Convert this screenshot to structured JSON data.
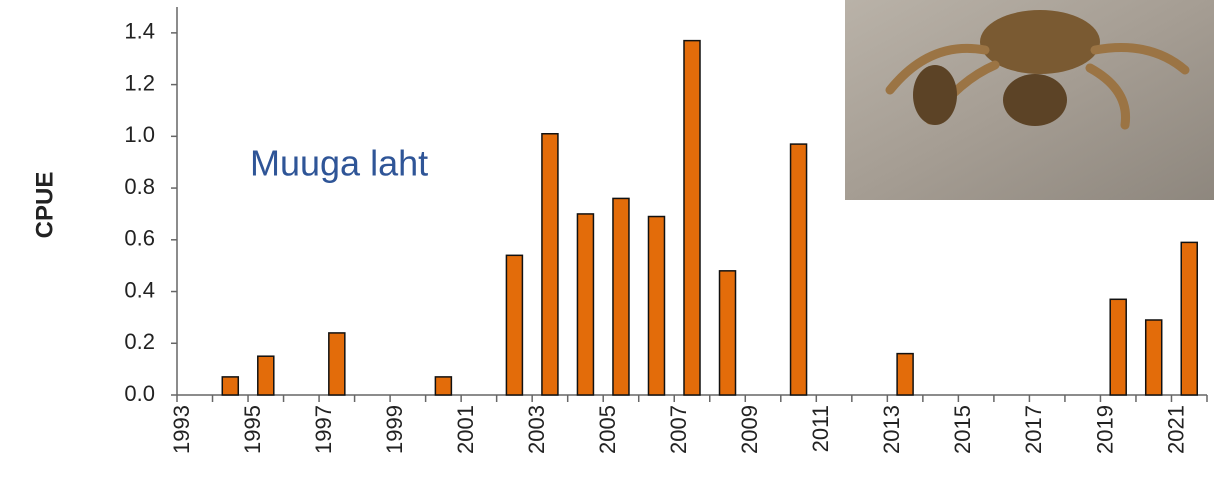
{
  "chart_data": {
    "type": "bar",
    "y_label": "CPUE",
    "annotation": "Muuga laht",
    "categories": [
      "1993",
      null,
      "1995",
      null,
      "1997",
      null,
      "1999",
      null,
      "2001",
      null,
      "2003",
      null,
      "2005",
      null,
      "2007",
      null,
      "2009",
      null,
      "2011",
      null,
      "2013",
      null,
      "2015",
      null,
      "2017",
      null,
      "2019",
      null,
      "2021"
    ],
    "values": [
      0,
      0.07,
      0.15,
      0,
      0.24,
      0,
      0,
      0.07,
      0,
      0.54,
      1.01,
      0.7,
      0.76,
      0.69,
      1.37,
      0.48,
      0,
      0.97,
      0,
      0,
      0.16,
      0,
      0,
      0,
      0,
      0,
      0.37,
      0.29,
      0.59
    ],
    "color": "#e36c0a",
    "ylim": [
      0,
      1.5
    ],
    "yticks": [
      {
        "value": 0,
        "label": "0.0"
      },
      0.2,
      0.4,
      0.6,
      0.8,
      {
        "value": 1,
        "label": "1.0"
      },
      1.2,
      1.4
    ],
    "grid": false
  }
}
